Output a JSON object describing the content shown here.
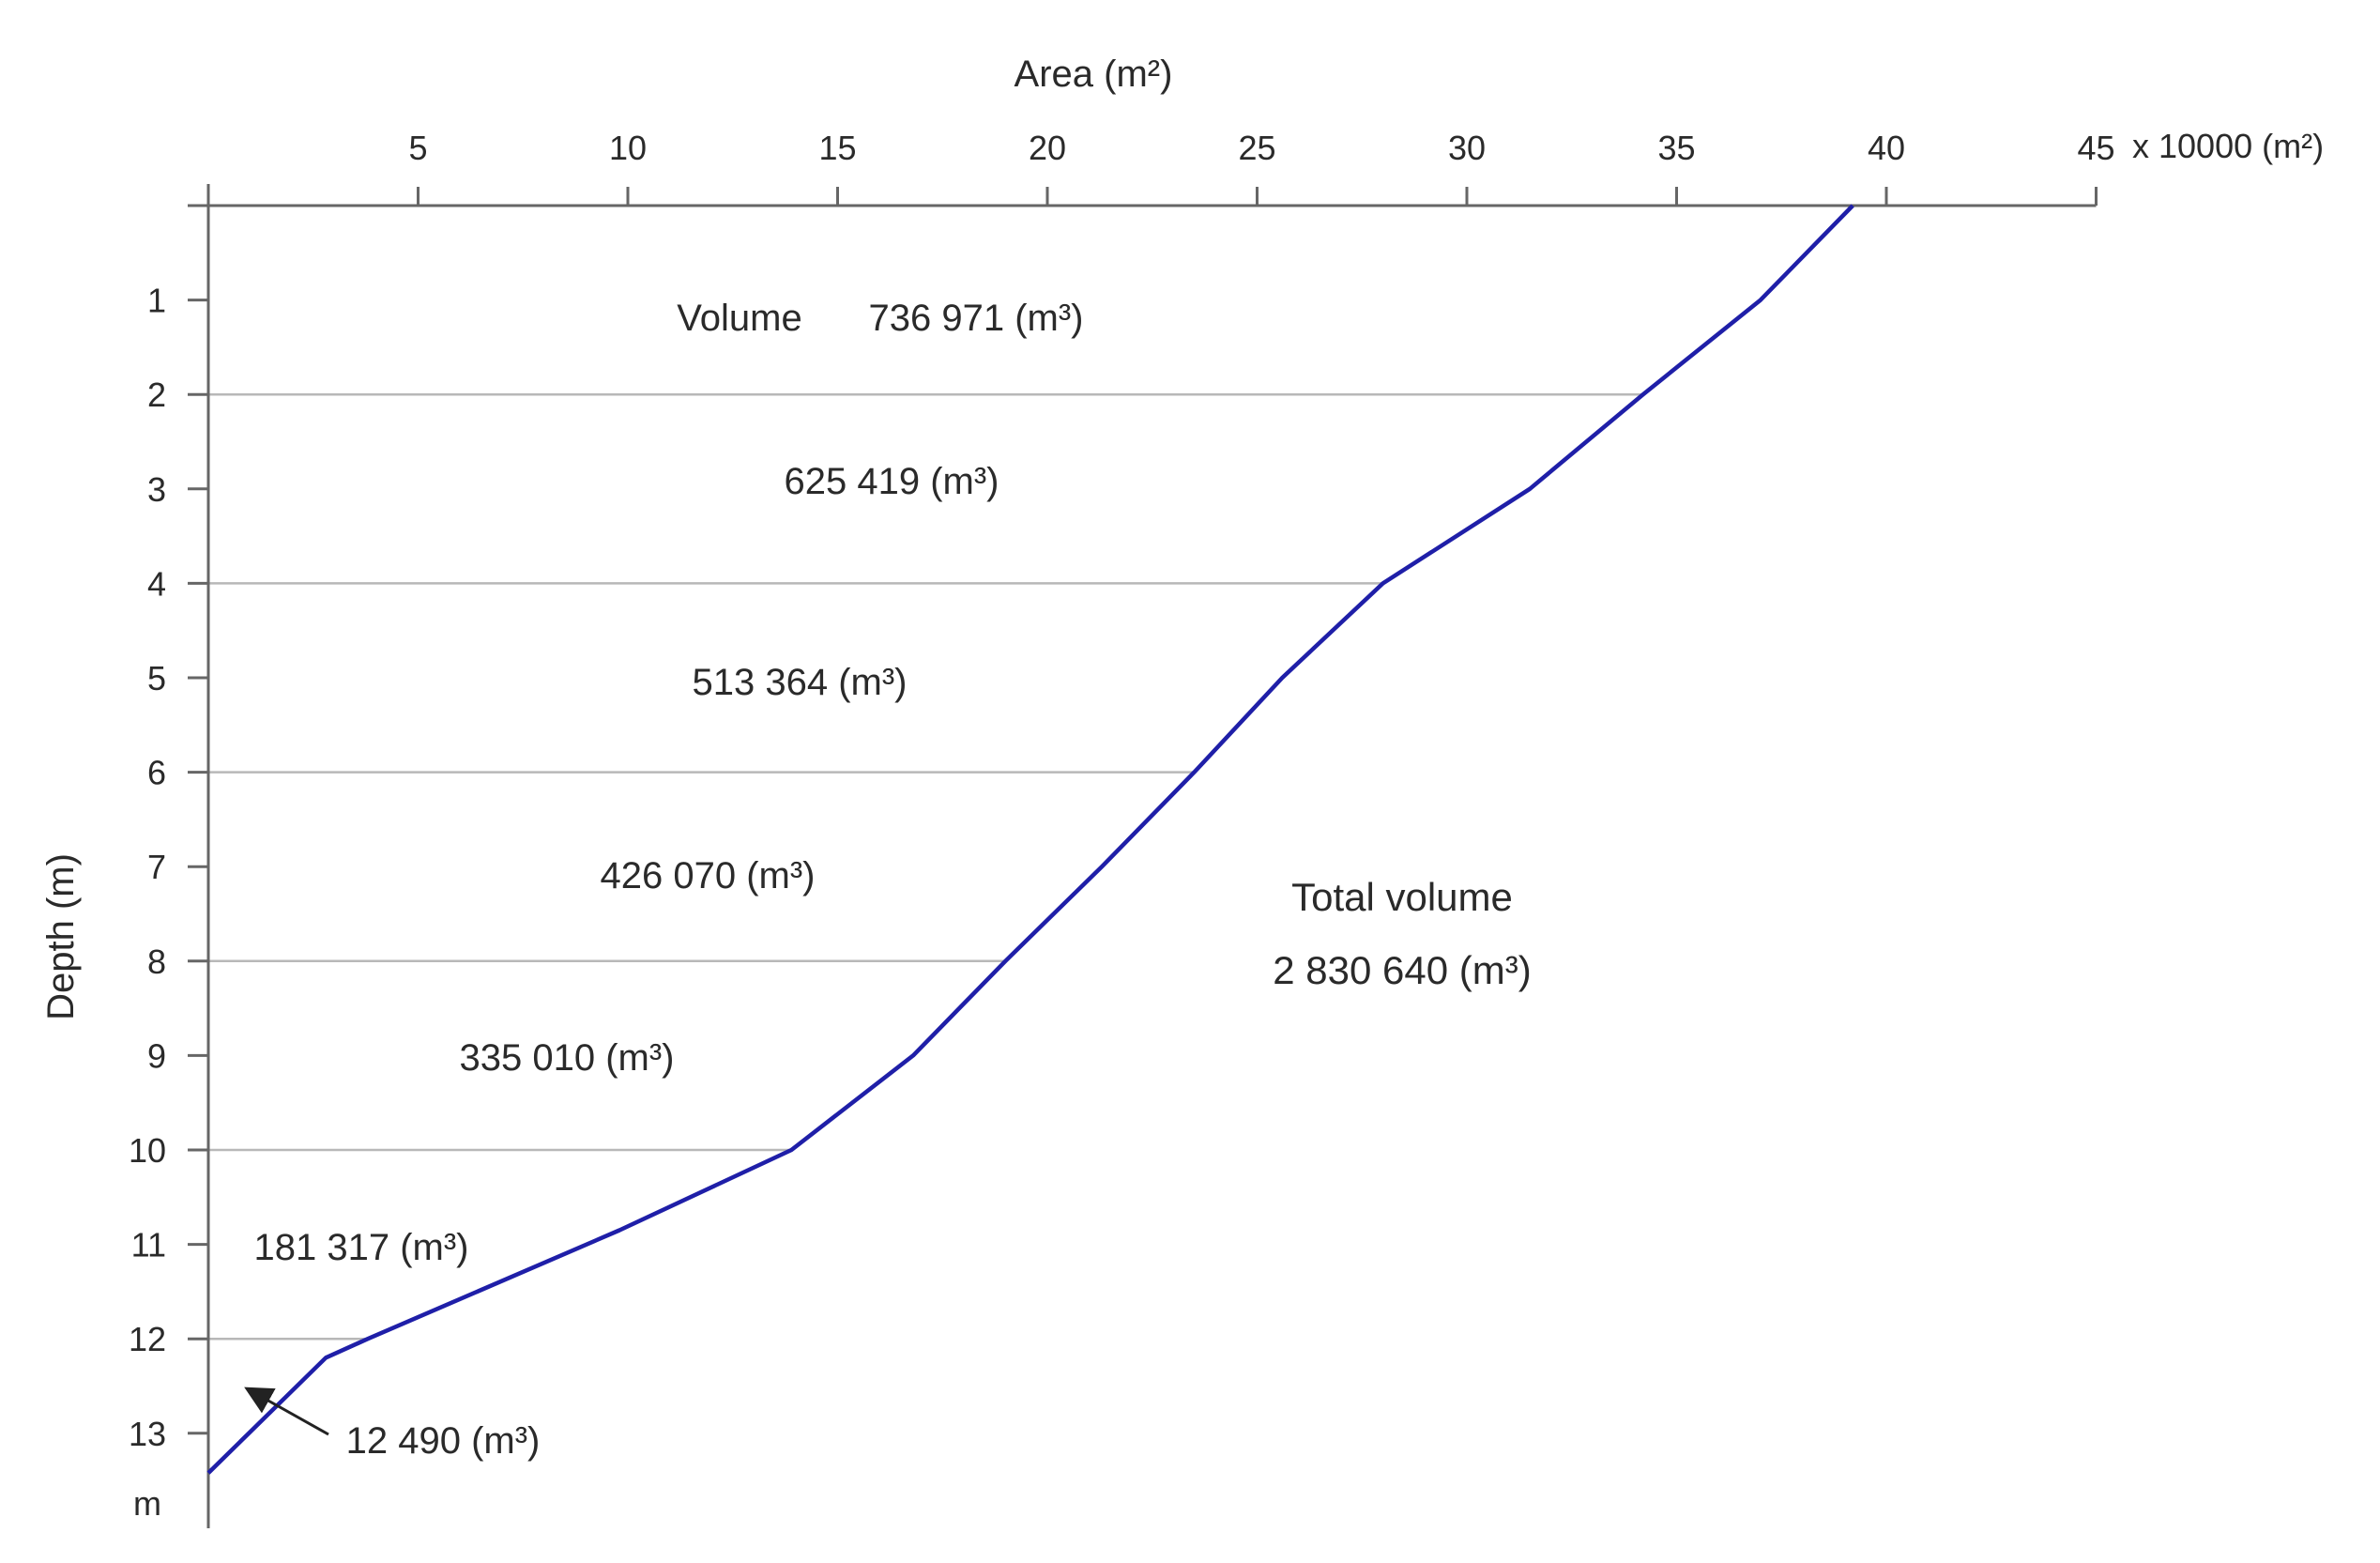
{
  "chart_data": {
    "type": "line",
    "title": "",
    "top_axis": {
      "label": "Area (m²)",
      "range": [
        0,
        45
      ],
      "ticks": [
        5,
        10,
        15,
        20,
        25,
        30,
        35,
        40,
        45
      ],
      "unit_label": "x 10000 (m²)"
    },
    "left_axis": {
      "label": "Depth (m)",
      "range": [
        0,
        13.5
      ],
      "ticks": [
        1,
        2,
        3,
        4,
        5,
        6,
        7,
        8,
        9,
        10,
        11,
        12,
        13
      ],
      "unit_label": "m",
      "inverted": true
    },
    "grid": "horizontal lines every 2 m, from the axis to the curve",
    "series": [
      {
        "color": "#1f1fa8",
        "x": [
          39.2,
          37.0,
          34.2,
          31.5,
          28.0,
          25.6,
          23.5,
          21.3,
          19.0,
          16.8,
          13.9,
          9.8,
          3.8,
          2.8,
          0.0
        ],
        "y": [
          0.0,
          1.0,
          2.0,
          3.0,
          4.0,
          5.0,
          6.0,
          7.0,
          8.0,
          9.0,
          10.0,
          10.85,
          12.0,
          12.2,
          13.42
        ]
      }
    ],
    "annotations": [
      {
        "label": "Volume",
        "text": "736 971 (m³)",
        "layer": [
          0,
          2
        ]
      },
      {
        "text": "625 419 (m³)",
        "layer": [
          2,
          4
        ]
      },
      {
        "text": "513 364 (m³)",
        "layer": [
          4,
          6
        ]
      },
      {
        "text": "426 070 (m³)",
        "layer": [
          6,
          8
        ]
      },
      {
        "text": "335 010 (m³)",
        "layer": [
          8,
          10
        ]
      },
      {
        "text": "181 317 (m³)",
        "layer": [
          10,
          12
        ]
      },
      {
        "text": "12 490 (m³)",
        "layer": [
          12,
          13.42
        ],
        "arrow": true
      }
    ],
    "total": {
      "label": "Total volume",
      "value": "2 830 640 (m³)"
    }
  }
}
